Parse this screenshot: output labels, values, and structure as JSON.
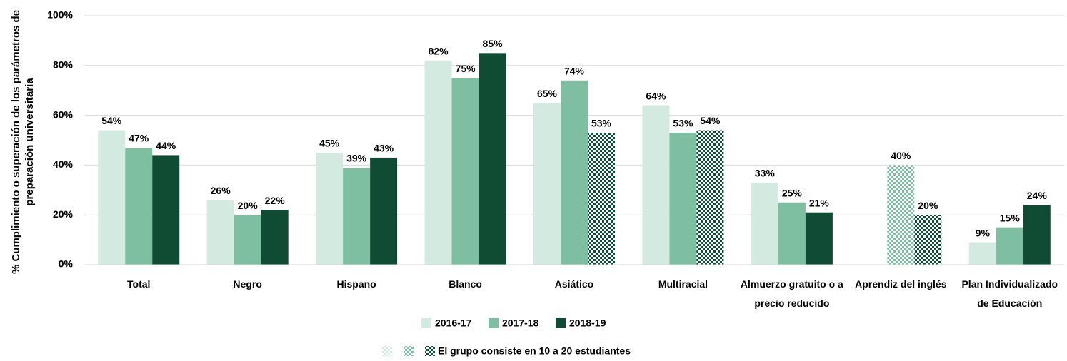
{
  "chart_data": {
    "type": "bar",
    "ylabel": "% Cumplimiento o superación de los parámetros de preparación universitaria",
    "categories": [
      "Total",
      "Negro",
      "Hispano",
      "Blanco",
      "Asiático",
      "Multiracial",
      "Almuerzo gratuito o a precio reducido",
      "Aprendiz del inglés",
      "Plan Individualizado de Educación"
    ],
    "series": [
      {
        "name": "2016-17",
        "color": "#d3eae0",
        "values": [
          54,
          26,
          45,
          82,
          65,
          64,
          33,
          null,
          9
        ],
        "value_labels": [
          "54%",
          "26%",
          "45%",
          "82%",
          "65%",
          "64%",
          "33%",
          null,
          "9%"
        ],
        "patterned": [
          false,
          false,
          false,
          false,
          false,
          false,
          false,
          false,
          false
        ]
      },
      {
        "name": "2017-18",
        "color": "#7dbfa0",
        "values": [
          47,
          20,
          39,
          75,
          74,
          53,
          25,
          40,
          15
        ],
        "value_labels": [
          "47%",
          "20%",
          "39%",
          "75%",
          "74%",
          "53%",
          "25%",
          "40%",
          "15%"
        ],
        "patterned": [
          false,
          false,
          false,
          false,
          false,
          false,
          false,
          true,
          false
        ]
      },
      {
        "name": "2018-19",
        "color": "#0f4c33",
        "values": [
          44,
          22,
          43,
          85,
          53,
          54,
          21,
          20,
          24
        ],
        "value_labels": [
          "44%",
          "22%",
          "43%",
          "85%",
          "53%",
          "54%",
          "21%",
          "20%",
          "24%"
        ],
        "patterned": [
          false,
          false,
          false,
          false,
          true,
          true,
          false,
          true,
          false
        ]
      }
    ],
    "pattern_legend": "El grupo consiste en 10 a 20 estudiantes",
    "ylim": [
      0,
      100
    ],
    "yticks": [
      {
        "value": 0,
        "label": "0%"
      },
      {
        "value": 20,
        "label": "20%"
      },
      {
        "value": 40,
        "label": "40%"
      },
      {
        "value": 60,
        "label": "60%"
      },
      {
        "value": 80,
        "label": "80%"
      },
      {
        "value": 100,
        "label": "100%"
      }
    ],
    "grid": true
  }
}
